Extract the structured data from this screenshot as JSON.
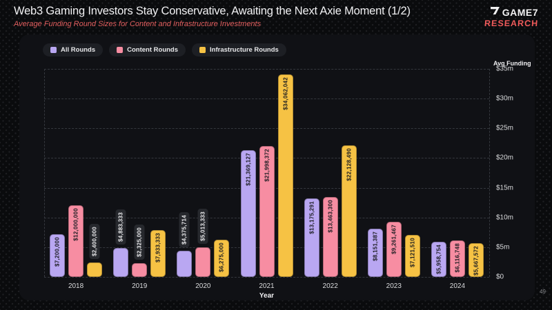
{
  "slide": {
    "title": "Web3 Gaming Investors Stay Conservative, Awaiting the Next Axie Moment (1/2)",
    "subtitle": "Average Funding Round Sizes for Content and Infrastructure Investments",
    "page_number": "49",
    "logo": {
      "brand": "GAME7",
      "sub": "RESEARCH"
    }
  },
  "colors": {
    "accent_red": "#ef5a5a",
    "card_bg": "#101115",
    "pill_bg": "#26282d",
    "grid": "#35383e"
  },
  "chart_data": {
    "type": "bar",
    "title": "Average Funding Round Sizes for Content and Infrastructure Investments",
    "categories": [
      "2018",
      "2019",
      "2020",
      "2021",
      "2022",
      "2023",
      "2024"
    ],
    "series": [
      {
        "name": "All Rounds",
        "color": "#b9a7f2",
        "values": [
          7200000,
          4883333,
          4375714,
          21369127,
          13175291,
          8151387,
          5958754
        ],
        "labels": [
          "$7,200,000",
          "$4,883,333",
          "$4,375,714",
          "$21,369,127",
          "$13,175,291",
          "$8,151,387",
          "$5,958,754"
        ]
      },
      {
        "name": "Content Rounds",
        "color": "#f78da2",
        "values": [
          12000000,
          2325000,
          5013333,
          21998372,
          13463300,
          9261467,
          6116748
        ],
        "labels": [
          "$12,000,000",
          "$2,325,000",
          "$5,013,333",
          "$21,998,372",
          "$13,463,300",
          "$9,261,467",
          "$6,116,748"
        ]
      },
      {
        "name": "Infrastructure Rounds",
        "color": "#f6c244",
        "values": [
          2400000,
          7933333,
          6275000,
          34062042,
          22128490,
          7121510,
          5667572
        ],
        "labels": [
          "$2,400,000",
          "$7,933,333",
          "$6,275,000",
          "$34,062,042",
          "$22,128,490",
          "$7,121,510",
          "$5,667,572"
        ]
      }
    ],
    "xlabel": "Year",
    "ylabel": "Avg Funding",
    "ylim": [
      0,
      35000000
    ],
    "y_ticks": [
      "$35m",
      "$30m",
      "$25m",
      "$20m",
      "$15m",
      "$10m",
      "$5m",
      "$0"
    ],
    "legend_position": "top-left",
    "grid": "dashed-horizontal"
  }
}
